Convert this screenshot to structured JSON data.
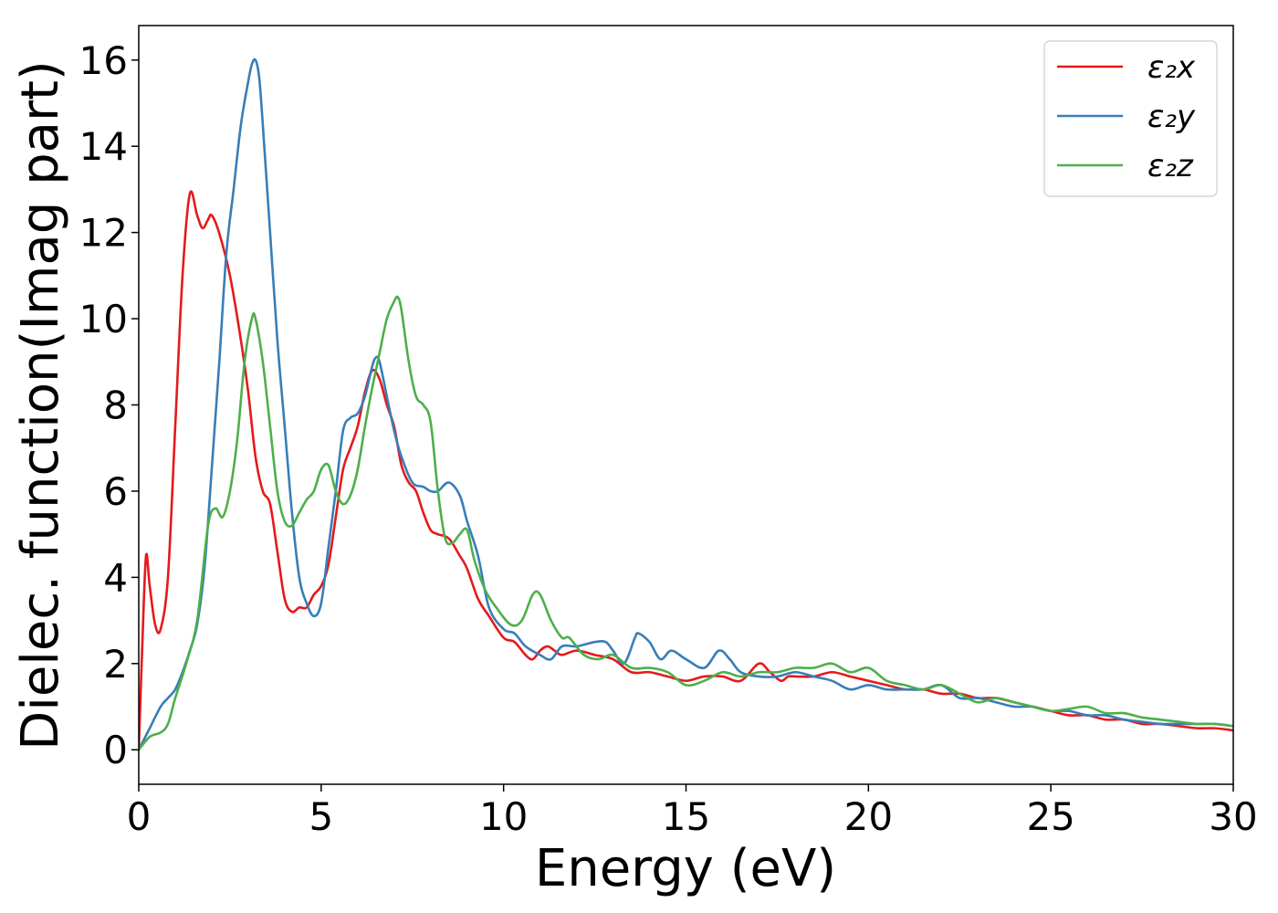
{
  "chart_data": {
    "type": "line",
    "xlabel": "Energy (eV)",
    "ylabel": "Dielec. function(Imag part)",
    "xlim": [
      0,
      30
    ],
    "ylim": [
      -0.8,
      16.8
    ],
    "xticks": [
      0,
      5,
      10,
      15,
      20,
      25,
      30
    ],
    "yticks": [
      0,
      2,
      4,
      6,
      8,
      10,
      12,
      14,
      16
    ],
    "grid": false,
    "legend_position": "top-right",
    "series": [
      {
        "name": "ε₂x",
        "color": "#e41a1c",
        "x": [
          0,
          0.1,
          0.2,
          0.3,
          0.45,
          0.6,
          0.8,
          1.0,
          1.2,
          1.4,
          1.6,
          1.75,
          1.9,
          2.0,
          2.2,
          2.5,
          2.8,
          3.0,
          3.2,
          3.4,
          3.6,
          3.8,
          4.0,
          4.2,
          4.4,
          4.6,
          4.8,
          5.0,
          5.2,
          5.4,
          5.6,
          5.8,
          6.0,
          6.2,
          6.4,
          6.6,
          6.8,
          7.0,
          7.2,
          7.4,
          7.6,
          7.8,
          8.0,
          8.2,
          8.5,
          8.8,
          9.0,
          9.3,
          9.6,
          10.0,
          10.3,
          10.6,
          10.8,
          11.0,
          11.2,
          11.4,
          11.6,
          12.0,
          12.5,
          13.0,
          13.5,
          14.0,
          14.5,
          15.0,
          15.5,
          16.0,
          16.5,
          17.0,
          17.3,
          17.6,
          17.8,
          18.0,
          18.5,
          19.0,
          19.5,
          20.0,
          20.5,
          21.0,
          21.5,
          22.0,
          22.5,
          23.0,
          23.5,
          24.0,
          24.5,
          25.0,
          25.5,
          26.0,
          26.5,
          27.0,
          27.5,
          28.0,
          28.5,
          29.0,
          29.5,
          30.0
        ],
        "values": [
          0,
          2.5,
          4.5,
          3.8,
          2.9,
          2.8,
          4.0,
          7.5,
          11.0,
          12.9,
          12.4,
          12.1,
          12.3,
          12.4,
          12.0,
          11.0,
          9.5,
          8.3,
          6.8,
          6.0,
          5.7,
          4.6,
          3.5,
          3.2,
          3.3,
          3.3,
          3.6,
          3.8,
          4.3,
          5.4,
          6.5,
          7.0,
          7.5,
          8.3,
          8.8,
          8.6,
          8.0,
          7.5,
          6.6,
          6.2,
          6.0,
          5.5,
          5.1,
          5.0,
          4.9,
          4.5,
          4.2,
          3.5,
          3.1,
          2.6,
          2.5,
          2.2,
          2.1,
          2.3,
          2.4,
          2.3,
          2.2,
          2.3,
          2.2,
          2.1,
          1.8,
          1.8,
          1.7,
          1.6,
          1.7,
          1.7,
          1.6,
          2.0,
          1.8,
          1.6,
          1.7,
          1.7,
          1.7,
          1.8,
          1.7,
          1.6,
          1.5,
          1.4,
          1.4,
          1.3,
          1.3,
          1.2,
          1.2,
          1.1,
          1.0,
          0.9,
          0.8,
          0.8,
          0.7,
          0.7,
          0.6,
          0.6,
          0.55,
          0.5,
          0.5,
          0.45
        ]
      },
      {
        "name": "ε₂y",
        "color": "#377eb8",
        "x": [
          0,
          0.3,
          0.6,
          0.8,
          1.0,
          1.2,
          1.4,
          1.6,
          1.8,
          2.0,
          2.2,
          2.4,
          2.6,
          2.8,
          3.0,
          3.1,
          3.2,
          3.3,
          3.4,
          3.6,
          3.8,
          4.0,
          4.2,
          4.4,
          4.6,
          4.8,
          5.0,
          5.2,
          5.4,
          5.6,
          5.8,
          6.0,
          6.2,
          6.4,
          6.5,
          6.6,
          6.8,
          7.0,
          7.2,
          7.5,
          7.8,
          8.0,
          8.2,
          8.5,
          8.8,
          9.0,
          9.3,
          9.6,
          10.0,
          10.3,
          10.6,
          11.0,
          11.3,
          11.6,
          12.0,
          12.5,
          12.8,
          13.0,
          13.3,
          13.6,
          13.7,
          14.0,
          14.3,
          14.6,
          15.0,
          15.5,
          15.9,
          16.2,
          16.5,
          17.0,
          17.5,
          18.0,
          18.5,
          19.0,
          19.5,
          20.0,
          20.5,
          21.0,
          21.5,
          22.0,
          22.5,
          23.0,
          23.5,
          24.0,
          24.5,
          25.0,
          25.5,
          26.0,
          26.5,
          27.0,
          27.5,
          28.0,
          28.5,
          29.0,
          29.5,
          30.0
        ],
        "values": [
          0,
          0.5,
          1.0,
          1.2,
          1.4,
          1.8,
          2.3,
          2.9,
          4.2,
          6.5,
          8.9,
          11.5,
          13.0,
          14.5,
          15.5,
          15.9,
          16.0,
          15.6,
          14.5,
          12.0,
          9.5,
          7.5,
          5.5,
          4.0,
          3.4,
          3.1,
          3.4,
          4.7,
          6.0,
          7.4,
          7.7,
          7.8,
          8.2,
          8.9,
          9.1,
          9.0,
          8.2,
          7.4,
          6.8,
          6.2,
          6.1,
          6.0,
          6.0,
          6.2,
          5.9,
          5.3,
          4.5,
          3.3,
          2.8,
          2.7,
          2.4,
          2.2,
          2.1,
          2.4,
          2.4,
          2.5,
          2.5,
          2.3,
          2.0,
          2.6,
          2.7,
          2.5,
          2.1,
          2.3,
          2.1,
          1.9,
          2.3,
          2.1,
          1.8,
          1.7,
          1.7,
          1.8,
          1.7,
          1.6,
          1.4,
          1.5,
          1.4,
          1.4,
          1.4,
          1.5,
          1.2,
          1.2,
          1.1,
          1.0,
          1.0,
          0.9,
          0.9,
          0.8,
          0.8,
          0.7,
          0.65,
          0.6,
          0.6,
          0.6,
          0.6,
          0.55
        ]
      },
      {
        "name": "ε₂z",
        "color": "#4daf4a",
        "x": [
          0,
          0.3,
          0.6,
          0.8,
          1.0,
          1.3,
          1.6,
          1.9,
          2.1,
          2.3,
          2.5,
          2.7,
          2.9,
          3.1,
          3.2,
          3.4,
          3.6,
          3.8,
          4.0,
          4.2,
          4.4,
          4.6,
          4.8,
          5.0,
          5.2,
          5.4,
          5.6,
          5.8,
          6.0,
          6.2,
          6.4,
          6.6,
          6.8,
          7.0,
          7.1,
          7.2,
          7.4,
          7.6,
          7.8,
          8.0,
          8.2,
          8.4,
          8.6,
          8.8,
          9.0,
          9.2,
          9.5,
          9.8,
          10.2,
          10.5,
          10.8,
          11.0,
          11.3,
          11.6,
          11.8,
          12.2,
          12.6,
          13.0,
          13.5,
          14.0,
          14.5,
          15.0,
          15.5,
          16.0,
          16.5,
          17.0,
          17.5,
          18.0,
          18.5,
          19.0,
          19.5,
          20.0,
          20.5,
          21.0,
          21.5,
          22.0,
          22.5,
          23.0,
          23.5,
          24.0,
          24.5,
          25.0,
          25.5,
          26.0,
          26.5,
          27.0,
          27.5,
          28.0,
          28.5,
          29.0,
          29.5,
          30.0
        ],
        "values": [
          0,
          0.3,
          0.4,
          0.6,
          1.2,
          2.0,
          3.0,
          5.2,
          5.6,
          5.4,
          6.0,
          7.2,
          9.0,
          10.0,
          10.0,
          9.0,
          7.5,
          6.0,
          5.3,
          5.2,
          5.5,
          5.8,
          6.0,
          6.5,
          6.6,
          6.0,
          5.7,
          5.9,
          6.5,
          7.5,
          8.4,
          9.2,
          10.0,
          10.4,
          10.5,
          10.2,
          9.0,
          8.2,
          8.0,
          7.6,
          6.0,
          4.9,
          4.8,
          5.0,
          5.1,
          4.4,
          3.7,
          3.3,
          2.9,
          3.0,
          3.6,
          3.6,
          3.0,
          2.6,
          2.6,
          2.2,
          2.1,
          2.2,
          1.9,
          1.9,
          1.8,
          1.5,
          1.6,
          1.8,
          1.7,
          1.8,
          1.8,
          1.9,
          1.9,
          2.0,
          1.8,
          1.9,
          1.6,
          1.5,
          1.4,
          1.5,
          1.3,
          1.1,
          1.2,
          1.1,
          1.0,
          0.9,
          0.95,
          1.0,
          0.85,
          0.85,
          0.75,
          0.7,
          0.65,
          0.6,
          0.6,
          0.55
        ]
      }
    ]
  }
}
